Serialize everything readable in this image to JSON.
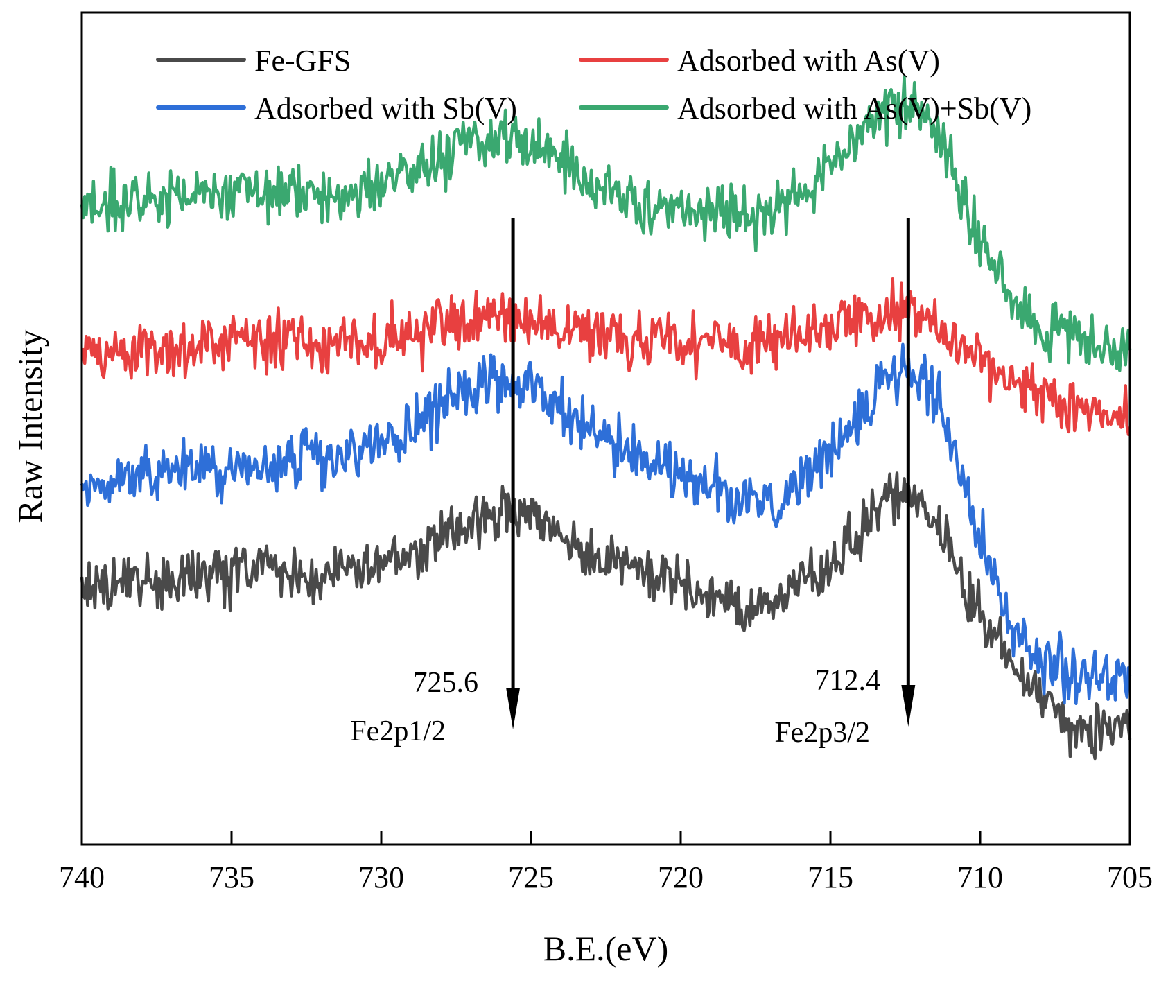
{
  "chart_data": {
    "type": "line",
    "title": "",
    "xlabel": "B.E.(eV)",
    "ylabel": "Raw Intensity",
    "xlim": [
      740,
      705
    ],
    "ylim": [
      0,
      100
    ],
    "x_reversed": true,
    "x_ticks": [
      740,
      735,
      730,
      725,
      720,
      715,
      710,
      705
    ],
    "y_ticks_shown": false,
    "grid": false,
    "legend_position": "top",
    "legend": [
      "Fe-GFS",
      "Adsorbed with As(V)",
      "Adsorbed with Sb(V)",
      "Adsorbed with As(V)+Sb(V)"
    ],
    "series": [
      {
        "name": "Fe-GFS",
        "color": "#4a4a4a",
        "x": [
          740,
          738,
          736,
          734,
          732,
          730,
          729,
          728,
          727,
          726,
          725,
          724,
          723,
          722,
          720,
          718,
          717,
          716,
          715,
          714,
          713.5,
          713,
          712.4,
          712,
          711.5,
          711,
          710.5,
          710,
          709,
          708,
          707,
          706,
          705
        ],
        "values": [
          31,
          31.5,
          32,
          33,
          32,
          33.5,
          35,
          37,
          39,
          40,
          39.5,
          37,
          35,
          33.5,
          31.5,
          28.5,
          29.5,
          31,
          33.5,
          37.5,
          40,
          42,
          42.5,
          41.5,
          39,
          35,
          31,
          27.5,
          22,
          17.5,
          14.5,
          13.5,
          13
        ],
        "noise": 3.2
      },
      {
        "name": "Adsorbed with As(V)",
        "color": "#e84040",
        "x": [
          740,
          738,
          736,
          734,
          732,
          730,
          729,
          728,
          727,
          726,
          725,
          724,
          723,
          722,
          720,
          718,
          717,
          716,
          715,
          714,
          713.5,
          713,
          712.4,
          712,
          711.5,
          711,
          710.5,
          710,
          709,
          708,
          707,
          706,
          705
        ],
        "values": [
          58.5,
          59.5,
          60,
          60.5,
          60,
          60.5,
          61,
          62,
          63,
          63.5,
          63.5,
          62.5,
          61.5,
          61,
          60,
          60,
          60.5,
          61,
          61.5,
          62.5,
          63,
          64,
          64,
          63.5,
          62.5,
          61,
          59.5,
          58,
          56,
          54,
          52.5,
          52,
          51.5
        ],
        "noise": 3.4
      },
      {
        "name": "Adsorbed with Sb(V)",
        "color": "#2e6fd8",
        "x": [
          740,
          738,
          736,
          734,
          732,
          730,
          729,
          728,
          727,
          726,
          725,
          724,
          723,
          722,
          720,
          718,
          717,
          716,
          715,
          714,
          713.5,
          713,
          712.4,
          712,
          711.5,
          711,
          710.5,
          710,
          709,
          708,
          707,
          706,
          705
        ],
        "values": [
          43,
          44,
          45,
          46,
          46,
          48,
          50,
          52.5,
          54.5,
          55.5,
          55,
          52.5,
          50,
          47.5,
          44.5,
          41,
          41.5,
          43.5,
          47,
          51.5,
          54.5,
          56.5,
          57,
          56.5,
          54,
          49.5,
          43,
          37,
          27,
          22,
          20.5,
          20,
          20
        ],
        "noise": 3.4
      },
      {
        "name": "Adsorbed with As(V)+Sb(V)",
        "color": "#3aa870",
        "x": [
          740,
          738,
          736,
          734,
          732,
          730,
          729,
          728,
          727,
          726,
          725,
          724,
          723,
          722,
          720,
          718,
          717,
          716,
          715,
          714,
          713.5,
          713,
          712.4,
          712,
          711.5,
          711,
          710.5,
          710,
          709,
          708,
          707,
          706,
          705
        ],
        "values": [
          77,
          77.5,
          78,
          78.5,
          78.5,
          79,
          80.5,
          82.5,
          84,
          85,
          84.5,
          82.5,
          79.5,
          77,
          76,
          75.5,
          76.5,
          78.5,
          81.5,
          85,
          87.5,
          88.5,
          88.5,
          88,
          86.5,
          82.5,
          77.5,
          72.5,
          66,
          62.5,
          61,
          60.5,
          60.5
        ],
        "noise": 3.4
      }
    ],
    "annotations": [
      {
        "id": "a1",
        "x": 725.6,
        "value_label": "725.6",
        "peak_label": "Fe2p1/2"
      },
      {
        "id": "a2",
        "x": 712.4,
        "value_label": "712.4",
        "peak_label": "Fe2p3/2"
      }
    ]
  }
}
